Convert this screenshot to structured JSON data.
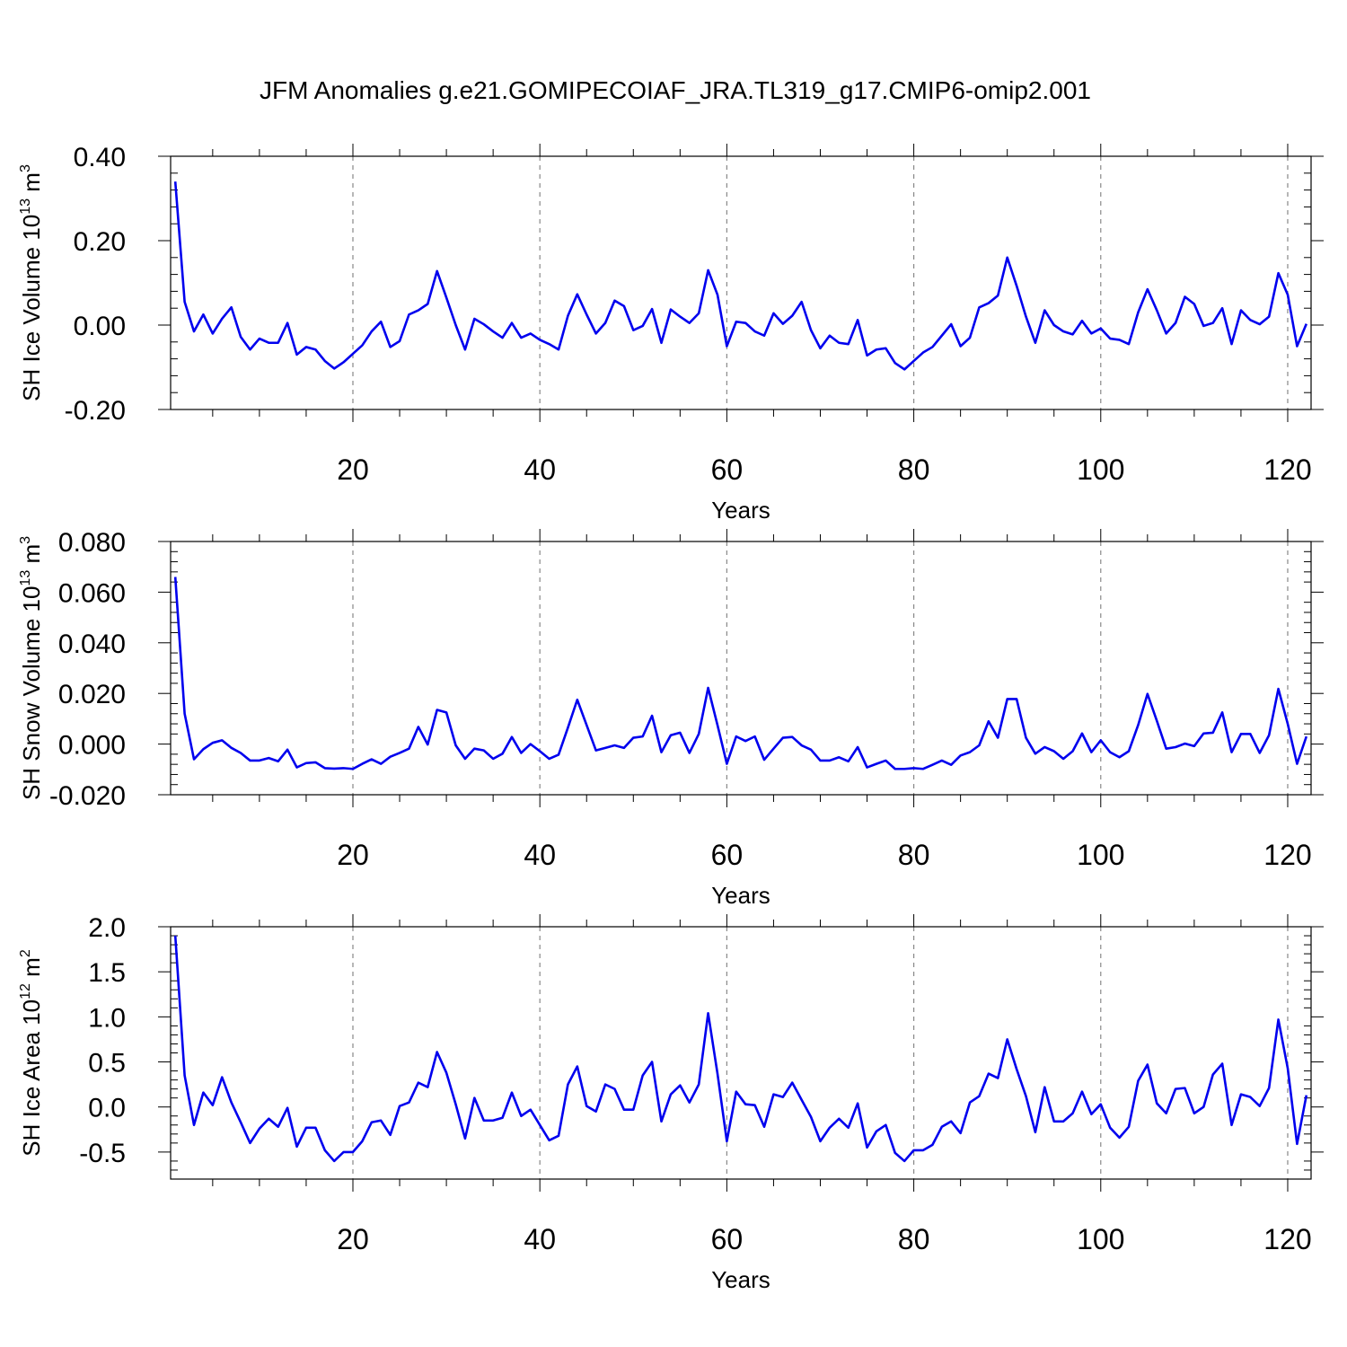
{
  "title": "JFM Anomalies g.e21.GOMIPECOIAF_JRA.TL319_g17.CMIP6-omip2.001",
  "chart_data": [
    {
      "type": "line",
      "ylabel_main": "SH Ice Volume 10",
      "ylabel_exp": "13",
      "ylabel_unit": " m",
      "ylabel_unit_exp": "3",
      "xlabel": "Years",
      "xlim": [
        1,
        122
      ],
      "ylim": [
        -0.2,
        0.4
      ],
      "yticks": [
        -0.2,
        0.0,
        0.2,
        0.4
      ],
      "ytick_labels": [
        "-0.20",
        "0.00",
        "0.20",
        "0.40"
      ],
      "xticks": [
        20,
        40,
        60,
        80,
        100,
        120
      ],
      "xtick_labels": [
        "20",
        "40",
        "60",
        "80",
        "100",
        "120"
      ],
      "grid": "dashed vertical at major x ticks",
      "line_color": "#0000ee",
      "series": [
        {
          "x": [
            1,
            2,
            3,
            4,
            5,
            6,
            7,
            8,
            9,
            10,
            11,
            12,
            13,
            14,
            15,
            16,
            17,
            18,
            19,
            20,
            21,
            22,
            23,
            24,
            25,
            26,
            27,
            28,
            29,
            30,
            31,
            32,
            33,
            34,
            35,
            36,
            37,
            38,
            39,
            40,
            41,
            42,
            43,
            44,
            45,
            46,
            47,
            48,
            49,
            50,
            51,
            52,
            53,
            54,
            55,
            56,
            57,
            58,
            59,
            60,
            61,
            62,
            63,
            64,
            65,
            66,
            67,
            68,
            69,
            70,
            71,
            72,
            73,
            74,
            75,
            76,
            77,
            78,
            79,
            80,
            81,
            82,
            83,
            84,
            85,
            86,
            87,
            88,
            89,
            90,
            91,
            92,
            93,
            94,
            95,
            96,
            97,
            98,
            99,
            100,
            101,
            102,
            103,
            104,
            105,
            106,
            107,
            108,
            109,
            110,
            111,
            112,
            113,
            114,
            115,
            116,
            117,
            118,
            119,
            120,
            121,
            122
          ],
          "values": [
            0.34,
            0.055,
            -0.015,
            0.025,
            -0.02,
            0.015,
            0.042,
            -0.028,
            -0.058,
            -0.032,
            -0.042,
            -0.042,
            0.005,
            -0.07,
            -0.052,
            -0.058,
            -0.085,
            -0.103,
            -0.088,
            -0.068,
            -0.048,
            -0.015,
            0.008,
            -0.052,
            -0.038,
            0.025,
            0.035,
            0.05,
            0.128,
            0.065,
            0.0,
            -0.058,
            0.015,
            0.002,
            -0.015,
            -0.03,
            0.005,
            -0.03,
            -0.02,
            -0.035,
            -0.045,
            -0.058,
            0.022,
            0.073,
            0.025,
            -0.02,
            0.005,
            0.058,
            0.045,
            -0.012,
            -0.002,
            0.038,
            -0.042,
            0.037,
            0.02,
            0.005,
            0.028,
            0.13,
            0.072,
            -0.05,
            0.008,
            0.005,
            -0.015,
            -0.025,
            0.028,
            0.003,
            0.022,
            0.055,
            -0.012,
            -0.055,
            -0.025,
            -0.042,
            -0.045,
            0.012,
            -0.072,
            -0.058,
            -0.055,
            -0.09,
            -0.105,
            -0.085,
            -0.065,
            -0.052,
            -0.025,
            0.002,
            -0.05,
            -0.03,
            0.042,
            0.052,
            0.07,
            0.16,
            0.093,
            0.02,
            -0.042,
            0.035,
            0.0,
            -0.015,
            -0.022,
            0.01,
            -0.02,
            -0.008,
            -0.032,
            -0.035,
            -0.045,
            0.03,
            0.085,
            0.035,
            -0.02,
            0.005,
            0.067,
            0.05,
            -0.002,
            0.005,
            0.04,
            -0.045,
            0.035,
            0.012,
            0.002,
            0.02,
            0.123,
            0.072,
            -0.05,
            0.003
          ]
        }
      ]
    },
    {
      "type": "line",
      "ylabel_main": "SH Snow Volume 10",
      "ylabel_exp": "13",
      "ylabel_unit": " m",
      "ylabel_unit_exp": "3",
      "xlabel": "Years",
      "xlim": [
        1,
        122
      ],
      "ylim": [
        -0.02,
        0.08
      ],
      "yticks": [
        -0.02,
        0.0,
        0.02,
        0.04,
        0.06,
        0.08
      ],
      "ytick_labels": [
        "-0.020",
        "0.000",
        "0.020",
        "0.040",
        "0.060",
        "0.080"
      ],
      "xticks": [
        20,
        40,
        60,
        80,
        100,
        120
      ],
      "xtick_labels": [
        "20",
        "40",
        "60",
        "80",
        "100",
        "120"
      ],
      "grid": "dashed vertical at major x ticks",
      "line_color": "#0000ee",
      "series": [
        {
          "x": [
            1,
            2,
            3,
            4,
            5,
            6,
            7,
            8,
            9,
            10,
            11,
            12,
            13,
            14,
            15,
            16,
            17,
            18,
            19,
            20,
            21,
            22,
            23,
            24,
            25,
            26,
            27,
            28,
            29,
            30,
            31,
            32,
            33,
            34,
            35,
            36,
            37,
            38,
            39,
            40,
            41,
            42,
            43,
            44,
            45,
            46,
            47,
            48,
            49,
            50,
            51,
            52,
            53,
            54,
            55,
            56,
            57,
            58,
            59,
            60,
            61,
            62,
            63,
            64,
            65,
            66,
            67,
            68,
            69,
            70,
            71,
            72,
            73,
            74,
            75,
            76,
            77,
            78,
            79,
            80,
            81,
            82,
            83,
            84,
            85,
            86,
            87,
            88,
            89,
            90,
            91,
            92,
            93,
            94,
            95,
            96,
            97,
            98,
            99,
            100,
            101,
            102,
            103,
            104,
            105,
            106,
            107,
            108,
            109,
            110,
            111,
            112,
            113,
            114,
            115,
            116,
            117,
            118,
            119,
            120,
            121,
            122
          ],
          "values": [
            0.066,
            0.012,
            -0.006,
            -0.002,
            0.0005,
            0.0015,
            -0.0015,
            -0.0035,
            -0.0065,
            -0.0065,
            -0.0055,
            -0.0068,
            -0.0022,
            -0.0092,
            -0.0075,
            -0.0072,
            -0.0095,
            -0.0097,
            -0.0095,
            -0.0098,
            -0.0078,
            -0.006,
            -0.0078,
            -0.005,
            -0.0035,
            -0.0018,
            0.0068,
            -0.0002,
            0.0135,
            0.0125,
            -0.0005,
            -0.0058,
            -0.0018,
            -0.0025,
            -0.0058,
            -0.0038,
            0.0028,
            -0.0035,
            0.0,
            -0.0028,
            -0.0058,
            -0.0042,
            0.0065,
            0.0175,
            0.0075,
            -0.0025,
            -0.0015,
            -0.0005,
            -0.0015,
            0.0025,
            0.003,
            0.0112,
            -0.0032,
            0.0035,
            0.0045,
            -0.0035,
            0.004,
            0.0222,
            0.0075,
            -0.0078,
            0.003,
            0.0012,
            0.003,
            -0.0062,
            -0.0018,
            0.0025,
            0.0028,
            -0.0005,
            -0.0022,
            -0.0065,
            -0.0065,
            -0.0052,
            -0.0068,
            -0.0012,
            -0.0092,
            -0.0078,
            -0.0065,
            -0.0098,
            -0.0098,
            -0.0095,
            -0.0098,
            -0.0082,
            -0.0065,
            -0.0082,
            -0.0045,
            -0.0032,
            -0.0005,
            0.009,
            0.0025,
            0.0178,
            0.0178,
            0.0025,
            -0.0038,
            -0.0012,
            -0.0028,
            -0.0058,
            -0.0028,
            0.0042,
            -0.0032,
            0.0015,
            -0.0032,
            -0.0052,
            -0.0028,
            0.0075,
            0.0198,
            0.0092,
            -0.0018,
            -0.0012,
            0.0002,
            -0.0008,
            0.0042,
            0.0045,
            0.0125,
            -0.0032,
            0.004,
            0.004,
            -0.0035,
            0.0035,
            0.0218,
            0.008,
            -0.0078,
            0.003
          ]
        }
      ]
    },
    {
      "type": "line",
      "ylabel_main": "SH Ice Area 10",
      "ylabel_exp": "12",
      "ylabel_unit": " m",
      "ylabel_unit_exp": "2",
      "xlabel": "Years",
      "xlim": [
        1,
        122
      ],
      "ylim": [
        -0.8,
        2.0
      ],
      "yticks": [
        -0.5,
        0.0,
        0.5,
        1.0,
        1.5,
        2.0
      ],
      "ytick_labels": [
        "-0.5",
        "0.0",
        "0.5",
        "1.0",
        "1.5",
        "2.0"
      ],
      "xticks": [
        20,
        40,
        60,
        80,
        100,
        120
      ],
      "xtick_labels": [
        "20",
        "40",
        "60",
        "80",
        "100",
        "120"
      ],
      "grid": "dashed vertical at major x ticks",
      "line_color": "#0000ee",
      "series": [
        {
          "x": [
            1,
            2,
            3,
            4,
            5,
            6,
            7,
            8,
            9,
            10,
            11,
            12,
            13,
            14,
            15,
            16,
            17,
            18,
            19,
            20,
            21,
            22,
            23,
            24,
            25,
            26,
            27,
            28,
            29,
            30,
            31,
            32,
            33,
            34,
            35,
            36,
            37,
            38,
            39,
            40,
            41,
            42,
            43,
            44,
            45,
            46,
            47,
            48,
            49,
            50,
            51,
            52,
            53,
            54,
            55,
            56,
            57,
            58,
            59,
            60,
            61,
            62,
            63,
            64,
            65,
            66,
            67,
            68,
            69,
            70,
            71,
            72,
            73,
            74,
            75,
            76,
            77,
            78,
            79,
            80,
            81,
            82,
            83,
            84,
            85,
            86,
            87,
            88,
            89,
            90,
            91,
            92,
            93,
            94,
            95,
            96,
            97,
            98,
            99,
            100,
            101,
            102,
            103,
            104,
            105,
            106,
            107,
            108,
            109,
            110,
            111,
            112,
            113,
            114,
            115,
            116,
            117,
            118,
            119,
            120,
            121,
            122
          ],
          "values": [
            1.9,
            0.35,
            -0.2,
            0.16,
            0.02,
            0.33,
            0.05,
            -0.17,
            -0.4,
            -0.24,
            -0.13,
            -0.22,
            -0.01,
            -0.44,
            -0.23,
            -0.23,
            -0.48,
            -0.6,
            -0.5,
            -0.5,
            -0.38,
            -0.17,
            -0.15,
            -0.31,
            0.01,
            0.05,
            0.27,
            0.22,
            0.61,
            0.38,
            0.03,
            -0.35,
            0.1,
            -0.15,
            -0.15,
            -0.12,
            0.16,
            -0.1,
            -0.03,
            -0.2,
            -0.37,
            -0.32,
            0.25,
            0.45,
            0.01,
            -0.05,
            0.25,
            0.2,
            -0.03,
            -0.03,
            0.35,
            0.5,
            -0.16,
            0.14,
            0.24,
            0.05,
            0.25,
            1.04,
            0.37,
            -0.38,
            0.17,
            0.03,
            0.02,
            -0.22,
            0.14,
            0.11,
            0.27,
            0.08,
            -0.11,
            -0.38,
            -0.23,
            -0.13,
            -0.23,
            0.04,
            -0.45,
            -0.27,
            -0.2,
            -0.51,
            -0.6,
            -0.48,
            -0.48,
            -0.42,
            -0.22,
            -0.16,
            -0.29,
            0.05,
            0.12,
            0.37,
            0.32,
            0.75,
            0.42,
            0.12,
            -0.28,
            0.22,
            -0.16,
            -0.16,
            -0.07,
            0.17,
            -0.08,
            0.03,
            -0.23,
            -0.34,
            -0.22,
            0.29,
            0.47,
            0.04,
            -0.07,
            0.2,
            0.21,
            -0.07,
            0.0,
            0.36,
            0.48,
            -0.2,
            0.14,
            0.11,
            0.01,
            0.21,
            0.97,
            0.43,
            -0.41,
            0.13
          ]
        }
      ]
    }
  ]
}
